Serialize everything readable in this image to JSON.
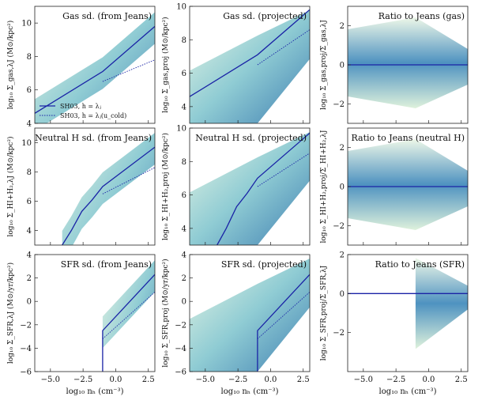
{
  "figure": {
    "colors": {
      "blue": "#1a23a6",
      "cmap_low": "#d8f0d3",
      "cmap_mid": "#5fb8c9",
      "cmap_high": "#0e4f8e"
    },
    "x_label": "log₁₀ nₕ (cm⁻³)",
    "x_ticks": [
      "−5.0",
      "−2.5",
      "0.0",
      "2.5"
    ],
    "legend": {
      "solid": "SH03, h = λⱼ",
      "dotted": "SH03, h = λⱼ(u_cold)"
    }
  },
  "chart_data": [
    {
      "type": "heatmap",
      "title": "Gas sd. (from Jeans)",
      "ylabel": "log₁₀ Σ_gas,λJ (M⊙/kpc²)",
      "xlim": [
        -6.2,
        3
      ],
      "ylim": [
        4,
        11
      ],
      "yticks": [
        4,
        6,
        8,
        10
      ],
      "row": 0,
      "col": 0,
      "curves": {
        "solid": [
          [
            -6.2,
            4.6
          ],
          [
            -1,
            7.1
          ],
          [
            3,
            9.8
          ]
        ],
        "dotted": [
          [
            -1,
            6.5
          ],
          [
            3,
            7.8
          ]
        ]
      }
    },
    {
      "type": "heatmap",
      "title": "Gas sd. (projected)",
      "ylabel": "log₁₀ Σ_gas,proj (M⊙/kpc²)",
      "xlim": [
        -6.2,
        3
      ],
      "ylim": [
        3,
        10
      ],
      "yticks": [
        4,
        6,
        8,
        10
      ],
      "row": 0,
      "col": 1,
      "curves": {
        "solid": [
          [
            -6.2,
            4.6
          ],
          [
            -1,
            7.1
          ],
          [
            3,
            9.8
          ]
        ],
        "dotted": [
          [
            -1,
            6.5
          ],
          [
            3,
            8.6
          ]
        ]
      }
    },
    {
      "type": "heatmap",
      "title": "Ratio to Jeans (gas)",
      "ylabel": "log₁₀ Σ_gas,proj/Σ_gas,λJ",
      "xlim": [
        -6.2,
        3
      ],
      "ylim": [
        -3,
        3
      ],
      "yticks": [
        -2,
        0,
        2
      ],
      "row": 0,
      "col": 2,
      "curves": {
        "solid": [
          [
            -6.2,
            0
          ],
          [
            3,
            0
          ]
        ]
      }
    },
    {
      "type": "heatmap",
      "title": "Neutral H sd. (from Jeans)",
      "ylabel": "log₁₀ Σ_HI+H₂,λJ (M⊙/kpc²)",
      "xlim": [
        -6.2,
        3
      ],
      "ylim": [
        3,
        11
      ],
      "yticks": [
        4,
        6,
        8,
        10
      ],
      "row": 1,
      "col": 0,
      "curves": {
        "solid": [
          [
            -4.1,
            3
          ],
          [
            -3.4,
            4
          ],
          [
            -2.6,
            5.3
          ],
          [
            -1.8,
            6.1
          ],
          [
            -1,
            7
          ],
          [
            3,
            9.7
          ]
        ],
        "dotted": [
          [
            -1,
            6.5
          ],
          [
            3,
            8.3
          ]
        ]
      }
    },
    {
      "type": "heatmap",
      "title": "Neutral H sd. (projected)",
      "ylabel": "log₁₀ Σ_HI+H₂,proj (M⊙/kpc²)",
      "xlim": [
        -6.2,
        3
      ],
      "ylim": [
        3,
        10
      ],
      "yticks": [
        4,
        6,
        8,
        10
      ],
      "row": 1,
      "col": 1,
      "curves": {
        "solid": [
          [
            -4.1,
            3
          ],
          [
            -3.4,
            4
          ],
          [
            -2.6,
            5.3
          ],
          [
            -1.8,
            6.1
          ],
          [
            -1,
            7
          ],
          [
            3,
            9.7
          ]
        ],
        "dotted": [
          [
            -1,
            6.5
          ],
          [
            3,
            8.5
          ]
        ]
      }
    },
    {
      "type": "heatmap",
      "title": "Ratio to Jeans (neutral H)",
      "ylabel": "log₁₀ Σ_HI+H₂,proj/Σ_HI+H₂,λJ",
      "xlim": [
        -6.2,
        3
      ],
      "ylim": [
        -3,
        3
      ],
      "yticks": [
        -2,
        0,
        2
      ],
      "row": 1,
      "col": 2,
      "curves": {
        "solid": [
          [
            -6.2,
            0
          ],
          [
            3,
            0
          ]
        ]
      }
    },
    {
      "type": "heatmap",
      "title": "SFR sd. (from Jeans)",
      "ylabel": "log₁₀ Σ_SFR,λJ (M⊙/yr/kpc²)",
      "xlim": [
        -6.2,
        3
      ],
      "ylim": [
        -6,
        4
      ],
      "yticks": [
        -6,
        -4,
        -2,
        0,
        2,
        4
      ],
      "row": 2,
      "col": 0,
      "curves": {
        "solid": [
          [
            -1,
            -6
          ],
          [
            -1,
            -2.5
          ],
          [
            3,
            2.3
          ]
        ],
        "dotted": [
          [
            -1,
            -3.2
          ],
          [
            3,
            0.8
          ]
        ]
      }
    },
    {
      "type": "heatmap",
      "title": "SFR sd. (projected)",
      "ylabel": "log₁₀ Σ_SFR,proj (M⊙/yr/kpc²)",
      "xlim": [
        -6.2,
        3
      ],
      "ylim": [
        -6,
        4
      ],
      "yticks": [
        -6,
        -4,
        -2,
        0,
        2,
        4
      ],
      "row": 2,
      "col": 1,
      "curves": {
        "solid": [
          [
            -1,
            -6
          ],
          [
            -1,
            -2.5
          ],
          [
            3,
            2.3
          ]
        ],
        "dotted": [
          [
            -1,
            -3.2
          ],
          [
            3,
            0.8
          ]
        ]
      }
    },
    {
      "type": "heatmap",
      "title": "Ratio to Jeans (SFR)",
      "ylabel": "log₁₀ Σ_SFR,proj/Σ_SFR,λJ",
      "xlim": [
        -6.2,
        3
      ],
      "ylim": [
        -4,
        2
      ],
      "yticks": [
        -2,
        0,
        2
      ],
      "row": 2,
      "col": 2,
      "curves": {
        "solid": [
          [
            -6.2,
            0
          ],
          [
            3,
            0
          ]
        ]
      }
    }
  ]
}
